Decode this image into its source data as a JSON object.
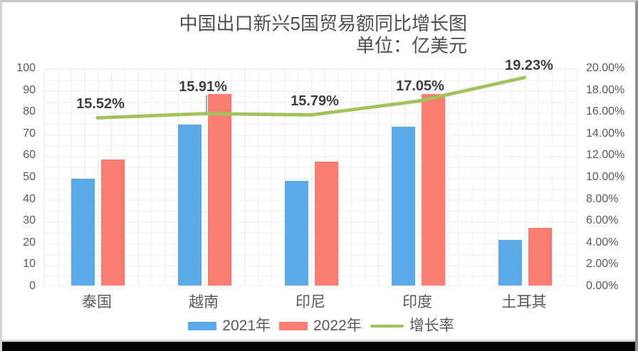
{
  "title": {
    "line1": "中国出口新兴5国贸易额同比增长图",
    "line2": "单位：亿美元"
  },
  "chart_data": {
    "type": "bar+line combo",
    "categories": [
      "泰国",
      "越南",
      "印尼",
      "印度",
      "土耳其"
    ],
    "series": [
      {
        "name": "2021年",
        "type": "bar",
        "color": "#5CA9E8",
        "axis": "left",
        "values": [
          49,
          74,
          48,
          73,
          21
        ]
      },
      {
        "name": "2022年",
        "type": "bar",
        "color": "#F97D72",
        "axis": "left",
        "values": [
          58,
          88,
          57,
          88,
          26.5
        ]
      },
      {
        "name": "增长率",
        "type": "line",
        "color": "#A2C25C",
        "axis": "right",
        "values": [
          15.52,
          15.91,
          15.79,
          17.05,
          19.23
        ],
        "point_labels": [
          "15.52%",
          "15.91%",
          "15.79%",
          "17.05%",
          "19.23%"
        ]
      }
    ],
    "left_axis": {
      "min": 0,
      "max": 100,
      "step": 10,
      "ticks": [
        "100",
        "90",
        "80",
        "70",
        "60",
        "50",
        "40",
        "30",
        "20",
        "10",
        "0"
      ]
    },
    "right_axis": {
      "min": 0,
      "max": 20,
      "step": 2,
      "ticks": [
        "20.00%",
        "18.00%",
        "16.00%",
        "14.00%",
        "12.00%",
        "10.00%",
        "8.00%",
        "6.00%",
        "4.00%",
        "2.00%",
        "0.00%"
      ]
    },
    "legend": [
      "2021年",
      "2022年",
      "增长率"
    ],
    "legend_position": "bottom",
    "grid": true
  },
  "colors": {
    "bar_2021": "#5CA9E8",
    "bar_2022": "#F97D72",
    "growth_line": "#A2C25C",
    "axis_text": "#595959",
    "data_label_text": "#3F3F3F",
    "bottom_bar": "#000000"
  }
}
